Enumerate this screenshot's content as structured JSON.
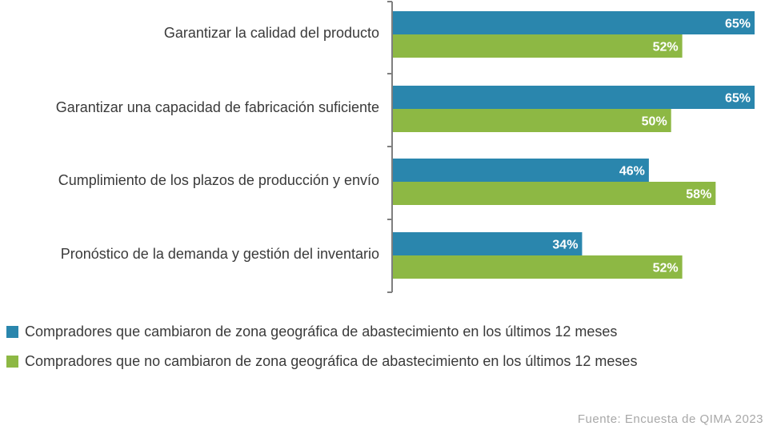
{
  "chart_data": {
    "type": "bar",
    "orientation": "horizontal",
    "categories": [
      "Garantizar la calidad del producto",
      "Garantizar una capacidad de fabricación suficiente",
      "Cumplimiento de los plazos de producción y envío",
      "Pronóstico de la demanda y gestión del inventario"
    ],
    "series": [
      {
        "name": "Compradores que cambiaron de zona geográfica de abastecimiento en los últimos 12 meses",
        "color": "#2a86ad",
        "values": [
          65,
          65,
          46,
          34
        ],
        "labels": [
          "65%",
          "65%",
          "46%",
          "34%"
        ]
      },
      {
        "name": "Compradores que no cambiaron de zona geográfica de abastecimiento en los últimos 12 meses",
        "color": "#8db844",
        "values": [
          52,
          50,
          58,
          52
        ],
        "labels": [
          "52%",
          "50%",
          "58%",
          "52%"
        ]
      }
    ],
    "xlim": [
      0,
      65
    ],
    "grid": false,
    "legend_position": "bottom-left"
  },
  "source": "Fuente: Encuesta de QIMA 2023"
}
